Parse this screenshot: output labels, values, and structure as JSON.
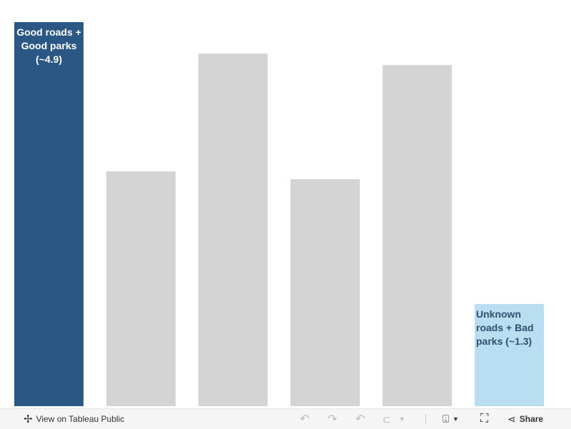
{
  "chart_data": {
    "type": "bar",
    "categories": [
      "",
      "",
      "",
      "",
      "",
      ""
    ],
    "values": [
      4.9,
      3.0,
      4.5,
      2.9,
      4.35,
      1.3
    ],
    "colors": [
      "#2a5783",
      "#d4d4d4",
      "#d4d4d4",
      "#d4d4d4",
      "#d4d4d4",
      "#b9ddf1"
    ],
    "annotations": [
      {
        "bar": 0,
        "text": "Good roads + Good parks (~4.9)",
        "color": "#ffffff"
      },
      {
        "bar": 5,
        "text": "Unknown roads + Bad parks (~1.3)",
        "color": "#2f4f6f"
      }
    ],
    "ylim": [
      0,
      4.9
    ],
    "grid": false,
    "axes_visible": false
  },
  "toolbar": {
    "view_on_label": "View on Tableau Public",
    "share_label": "Share",
    "icons": [
      "tableau-logo-icon",
      "undo-icon",
      "redo-icon",
      "revert-icon",
      "refresh-icon",
      "download-icon",
      "fullscreen-icon",
      "share-icon"
    ]
  }
}
